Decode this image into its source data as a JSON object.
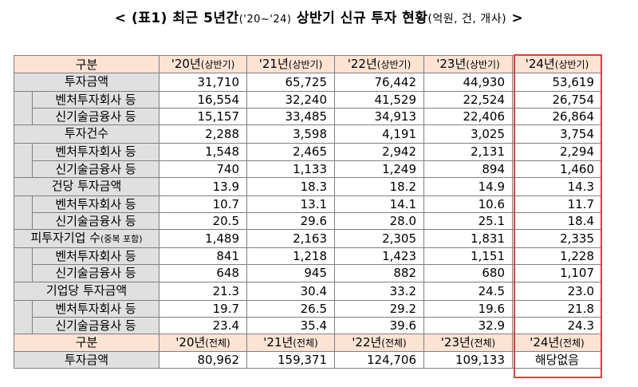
{
  "title": {
    "lead": "< (표1) 최근 5년간",
    "period": "('20~'24)",
    "main": "상반기 신규 투자 현황",
    "unit": "(억원, 건, 개사)",
    "tail": ">"
  },
  "header": {
    "label": "구분",
    "columns": [
      {
        "year": "'20년",
        "note": "(상반기)"
      },
      {
        "year": "'21년",
        "note": "(상반기)"
      },
      {
        "year": "'22년",
        "note": "(상반기)"
      },
      {
        "year": "'23년",
        "note": "(상반기)"
      },
      {
        "year": "'24년",
        "note": "(상반기)"
      }
    ]
  },
  "groups": [
    {
      "label": "투자금액",
      "note": "",
      "values": [
        "31,710",
        "65,725",
        "76,442",
        "44,930",
        "53,619"
      ],
      "subs": [
        {
          "label": "벤처투자회사 등",
          "values": [
            "16,554",
            "32,240",
            "41,529",
            "22,524",
            "26,754"
          ]
        },
        {
          "label": "신기술금융사 등",
          "values": [
            "15,157",
            "33,485",
            "34,913",
            "22,406",
            "26,864"
          ]
        }
      ]
    },
    {
      "label": "투자건수",
      "note": "",
      "values": [
        "2,288",
        "3,598",
        "4,191",
        "3,025",
        "3,754"
      ],
      "subs": [
        {
          "label": "벤처투자회사 등",
          "values": [
            "1,548",
            "2,465",
            "2,942",
            "2,131",
            "2,294"
          ]
        },
        {
          "label": "신기술금융사 등",
          "values": [
            "740",
            "1,133",
            "1,249",
            "894",
            "1,460"
          ]
        }
      ]
    },
    {
      "label": "건당 투자금액",
      "note": "",
      "values": [
        "13.9",
        "18.3",
        "18.2",
        "14.9",
        "14.3"
      ],
      "subs": [
        {
          "label": "벤처투자회사 등",
          "values": [
            "10.7",
            "13.1",
            "14.1",
            "10.6",
            "11.7"
          ]
        },
        {
          "label": "신기술금융사 등",
          "values": [
            "20.5",
            "29.6",
            "28.0",
            "25.1",
            "18.4"
          ]
        }
      ]
    },
    {
      "label": "피투자기업 수",
      "note": "(중복 포함)",
      "values": [
        "1,489",
        "2,163",
        "2,305",
        "1,831",
        "2,335"
      ],
      "subs": [
        {
          "label": "벤처투자회사 등",
          "values": [
            "841",
            "1,218",
            "1,423",
            "1,151",
            "1,228"
          ]
        },
        {
          "label": "신기술금융사 등",
          "values": [
            "648",
            "945",
            "882",
            "680",
            "1,107"
          ]
        }
      ]
    },
    {
      "label": "기업당 투자금액",
      "note": "",
      "values": [
        "21.3",
        "30.4",
        "33.2",
        "24.5",
        "23.0"
      ],
      "subs": [
        {
          "label": "벤처투자회사 등",
          "values": [
            "19.7",
            "26.5",
            "29.2",
            "19.6",
            "21.8"
          ]
        },
        {
          "label": "신기술금융사 등",
          "values": [
            "23.4",
            "35.4",
            "39.6",
            "32.9",
            "24.3"
          ]
        }
      ]
    }
  ],
  "footer_header": {
    "label": "구분",
    "columns": [
      {
        "year": "'20년",
        "note": "(전체)"
      },
      {
        "year": "'21년",
        "note": "(전체)"
      },
      {
        "year": "'22년",
        "note": "(전체)"
      },
      {
        "year": "'23년",
        "note": "(전체)"
      },
      {
        "year": "'24년",
        "note": "(전체)"
      }
    ]
  },
  "footer_row": {
    "label": "투자금액",
    "values": [
      "80,962",
      "159,371",
      "124,706",
      "109,133",
      "해당없음"
    ]
  },
  "highlight_color": "#e03c3c",
  "header_bg": "#fde3d4",
  "label_bg": "#e0e0e0"
}
